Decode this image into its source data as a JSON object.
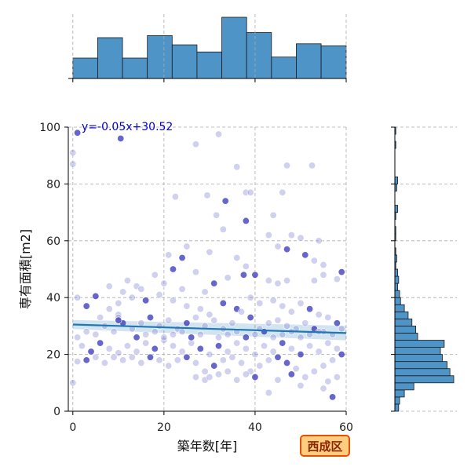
{
  "chart_data": {
    "type": "scatter",
    "xlabel": "築年数[年]",
    "ylabel": "専有面積[m2]",
    "xlim": [
      -1,
      60
    ],
    "ylim": [
      0,
      100
    ],
    "x_ticks": [
      0,
      20,
      40,
      60
    ],
    "y_ticks": [
      0,
      20,
      40,
      60,
      80,
      100
    ],
    "grid": true,
    "annotation": "y=-0.05x+30.52",
    "badge": "西成区",
    "regression": {
      "slope": -0.05,
      "intercept": 30.52
    },
    "points": [
      [
        1,
        98
      ],
      [
        0,
        91
      ],
      [
        0,
        87
      ],
      [
        10.5,
        96
      ],
      [
        27,
        94
      ],
      [
        32,
        97.5
      ],
      [
        29.5,
        76
      ],
      [
        33.5,
        74
      ],
      [
        31.5,
        69
      ],
      [
        33,
        64
      ],
      [
        22.5,
        75.5
      ],
      [
        36,
        86
      ],
      [
        38,
        77
      ],
      [
        39,
        77
      ],
      [
        38,
        67
      ],
      [
        47,
        86.5
      ],
      [
        52.5,
        86.5
      ],
      [
        44,
        69
      ],
      [
        46,
        77
      ],
      [
        43,
        62
      ],
      [
        45,
        58
      ],
      [
        47,
        57
      ],
      [
        48,
        62
      ],
      [
        50,
        61
      ],
      [
        54,
        60
      ],
      [
        51,
        55
      ],
      [
        53,
        53
      ],
      [
        55,
        51.5
      ],
      [
        59,
        49
      ],
      [
        55,
        48
      ],
      [
        58,
        46.5
      ],
      [
        53,
        46
      ],
      [
        47,
        46
      ],
      [
        45,
        45
      ],
      [
        43,
        46
      ],
      [
        40,
        48
      ],
      [
        37.5,
        48
      ],
      [
        38,
        51
      ],
      [
        36,
        54
      ],
      [
        34,
        47
      ],
      [
        30,
        56
      ],
      [
        25,
        58
      ],
      [
        24,
        54
      ],
      [
        21,
        55
      ],
      [
        12,
        46
      ],
      [
        14,
        44
      ],
      [
        18,
        48
      ],
      [
        22,
        50
      ],
      [
        27,
        49
      ],
      [
        31,
        45
      ],
      [
        29,
        42
      ],
      [
        24,
        43
      ],
      [
        20,
        45
      ],
      [
        15,
        43
      ],
      [
        11,
        42
      ],
      [
        8,
        44
      ],
      [
        5,
        40.5
      ],
      [
        1,
        40
      ],
      [
        3,
        37
      ],
      [
        6,
        33
      ],
      [
        8,
        36
      ],
      [
        10,
        38
      ],
      [
        13,
        40
      ],
      [
        16,
        39
      ],
      [
        19,
        41
      ],
      [
        22,
        39
      ],
      [
        25,
        37
      ],
      [
        28,
        36
      ],
      [
        30,
        34
      ],
      [
        33,
        38
      ],
      [
        36,
        36
      ],
      [
        39,
        40
      ],
      [
        41,
        38
      ],
      [
        44,
        39
      ],
      [
        46,
        37
      ],
      [
        48,
        35
      ],
      [
        50,
        38
      ],
      [
        52,
        36
      ],
      [
        54,
        34
      ],
      [
        56,
        33
      ],
      [
        58,
        31
      ],
      [
        59,
        29
      ],
      [
        57,
        27
      ],
      [
        55,
        28
      ],
      [
        53,
        29
      ],
      [
        51,
        31
      ],
      [
        49,
        29
      ],
      [
        47,
        30
      ],
      [
        45,
        32
      ],
      [
        43,
        31
      ],
      [
        41,
        29
      ],
      [
        39,
        33
      ],
      [
        37,
        35
      ],
      [
        35,
        31
      ],
      [
        33,
        29
      ],
      [
        31,
        32
      ],
      [
        29,
        30
      ],
      [
        27,
        33
      ],
      [
        25,
        31
      ],
      [
        23,
        29
      ],
      [
        21,
        32
      ],
      [
        19,
        30
      ],
      [
        17,
        33
      ],
      [
        15,
        31
      ],
      [
        13,
        29
      ],
      [
        11,
        31
      ],
      [
        9,
        28
      ],
      [
        7,
        30
      ],
      [
        5,
        27
      ],
      [
        3,
        28
      ],
      [
        1,
        26
      ],
      [
        2,
        23
      ],
      [
        4,
        21
      ],
      [
        6,
        24
      ],
      [
        8,
        22
      ],
      [
        10,
        20.5
      ],
      [
        12,
        23
      ],
      [
        14,
        21
      ],
      [
        16,
        24
      ],
      [
        18,
        22
      ],
      [
        20,
        25
      ],
      [
        22,
        23
      ],
      [
        24,
        21
      ],
      [
        26,
        24
      ],
      [
        28,
        22
      ],
      [
        30,
        20
      ],
      [
        32,
        23
      ],
      [
        34,
        21
      ],
      [
        36,
        24
      ],
      [
        38,
        22
      ],
      [
        40,
        20
      ],
      [
        42,
        23
      ],
      [
        44,
        21
      ],
      [
        46,
        24
      ],
      [
        48,
        22
      ],
      [
        50,
        20
      ],
      [
        52,
        23
      ],
      [
        54,
        21
      ],
      [
        56,
        24
      ],
      [
        58,
        22
      ],
      [
        59,
        20
      ],
      [
        57,
        18
      ],
      [
        55,
        16
      ],
      [
        53,
        14
      ],
      [
        51,
        12
      ],
      [
        49,
        15
      ],
      [
        47,
        17
      ],
      [
        45,
        19
      ],
      [
        43,
        18
      ],
      [
        41,
        16
      ],
      [
        39,
        14
      ],
      [
        37,
        17
      ],
      [
        35,
        19
      ],
      [
        33,
        18
      ],
      [
        31,
        16
      ],
      [
        29,
        14
      ],
      [
        27,
        17
      ],
      [
        25,
        19
      ],
      [
        23,
        18
      ],
      [
        21,
        16
      ],
      [
        19,
        18
      ],
      [
        17,
        19
      ],
      [
        15,
        17
      ],
      [
        13,
        19
      ],
      [
        11,
        18
      ],
      [
        9,
        19
      ],
      [
        7,
        17
      ],
      [
        5,
        19
      ],
      [
        3,
        18
      ],
      [
        1,
        17.5
      ],
      [
        0,
        10
      ],
      [
        27,
        12
      ],
      [
        29,
        11
      ],
      [
        36,
        11
      ],
      [
        38,
        13
      ],
      [
        40,
        12
      ],
      [
        43,
        6.5
      ],
      [
        55,
        8
      ],
      [
        56,
        10.5
      ],
      [
        57,
        5
      ],
      [
        58,
        12
      ],
      [
        50,
        9
      ],
      [
        48,
        13
      ],
      [
        45,
        11
      ],
      [
        34,
        14
      ],
      [
        32,
        13
      ],
      [
        30,
        12
      ],
      [
        10,
        34
      ],
      [
        10,
        33
      ],
      [
        10,
        32
      ],
      [
        14,
        26
      ],
      [
        16,
        27
      ],
      [
        18,
        28
      ],
      [
        20,
        26
      ],
      [
        22,
        27
      ],
      [
        24,
        28
      ],
      [
        26,
        26
      ],
      [
        28,
        27
      ],
      [
        32,
        26
      ],
      [
        34,
        27
      ],
      [
        36,
        28
      ],
      [
        38,
        26
      ],
      [
        40,
        27
      ],
      [
        42,
        28
      ],
      [
        44,
        26
      ],
      [
        46,
        27
      ],
      [
        48,
        28
      ],
      [
        50,
        26
      ],
      [
        52,
        27
      ],
      [
        54,
        28
      ]
    ],
    "hist_x": {
      "bins": [
        0,
        5.45,
        10.9,
        16.35,
        21.8,
        27.25,
        32.7,
        38.15,
        43.6,
        49.05,
        54.5,
        60
      ],
      "counts": [
        20,
        40,
        20,
        42,
        33,
        26,
        60,
        45,
        21,
        34,
        32
      ]
    },
    "hist_y": {
      "bin_width": 2.5,
      "counts": [
        4,
        5,
        10,
        20,
        62,
        58,
        55,
        50,
        48,
        52,
        24,
        22,
        18,
        14,
        10,
        6,
        5,
        3,
        4,
        3,
        1,
        2,
        1,
        0,
        1,
        1,
        0,
        1,
        3,
        0,
        0,
        2,
        3,
        0,
        0,
        0,
        0,
        1,
        0,
        1
      ]
    }
  }
}
